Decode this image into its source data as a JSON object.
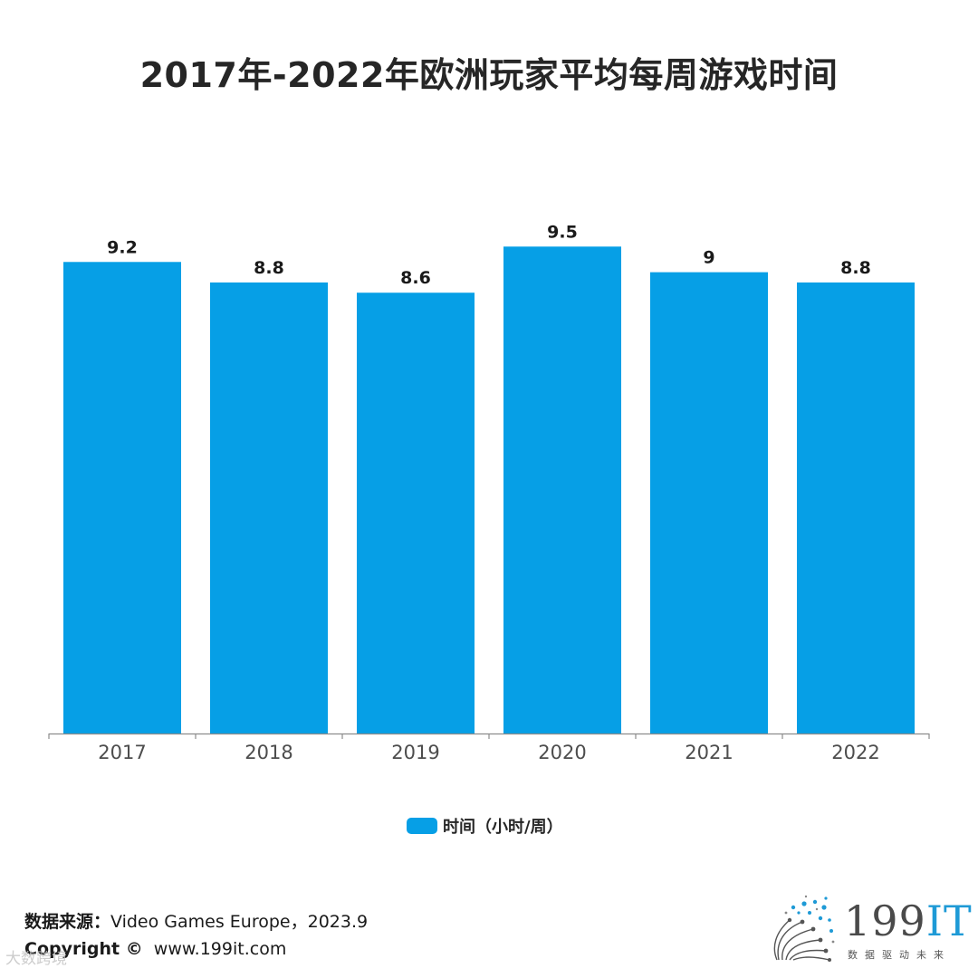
{
  "title": "2017年-2022年欧洲玩家平均每周游戏时间",
  "chart_data": {
    "type": "bar",
    "categories": [
      "2017",
      "2018",
      "2019",
      "2020",
      "2021",
      "2022"
    ],
    "series": [
      {
        "name": "时间（小时/周）",
        "values": [
          9.2,
          8.8,
          8.6,
          9.5,
          9,
          8.8
        ],
        "color": "#069fe6"
      }
    ],
    "ylim": [
      0,
      10
    ],
    "grid": false,
    "legend": "bottom",
    "data_labels": [
      "9.2",
      "8.8",
      "8.6",
      "9.5",
      "9",
      "8.8"
    ]
  },
  "footer": {
    "source_label": "数据来源：",
    "source_value": "Video Games Europe，2023.9",
    "copyright_label": "Copyright ©",
    "copyright_value": "www.199it.com"
  },
  "watermark": "大数跨境",
  "logo": {
    "name_main": "199",
    "name_accent": "IT",
    "tagline": "数据驱动未来",
    "icon": "dandelion-dots-icon",
    "accent_color": "#1e9ad6"
  }
}
